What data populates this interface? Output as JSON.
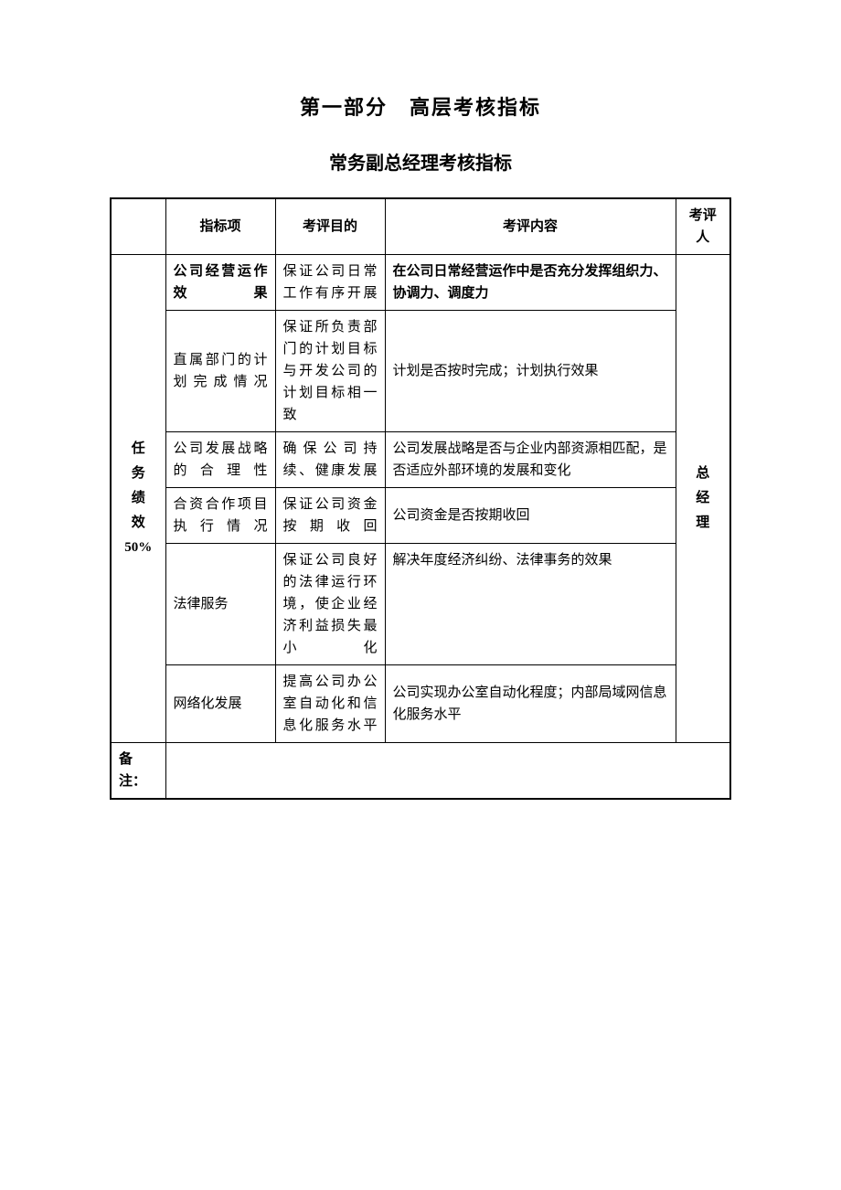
{
  "titles": {
    "main": "第一部分　高层考核指标",
    "sub": "常务副总经理考核指标"
  },
  "headers": {
    "indicator": "指标项",
    "purpose": "考评目的",
    "content": "考评内容",
    "evaluator": "考评人"
  },
  "category": {
    "line1": "任",
    "line2": "务",
    "line3": "绩",
    "line4": "效",
    "line5": "50%"
  },
  "evaluator": {
    "line1": "总",
    "line2": "经",
    "line3": "理"
  },
  "rows": [
    {
      "indicator": "公司经营运作效果",
      "indicator_bold": true,
      "purpose": "保证公司日常工作有序开展",
      "content": "在公司日常经营运作中是否充分发挥组织力、协调力、调度力",
      "content_bold": true
    },
    {
      "indicator": "直属部门的计划完成情况",
      "purpose": "保证所负责部门的计划目标与开发公司的计划目标相一致",
      "content": "计划是否按时完成；计划执行效果"
    },
    {
      "indicator": "公司发展战略的合理性",
      "purpose": "确保公司持续、健康发展",
      "content": "公司发展战略是否与企业内部资源相匹配，是否适应外部环境的发展和变化"
    },
    {
      "indicator": "合资合作项目执行情况",
      "purpose": "保证公司资金按期收回",
      "content": "公司资金是否按期收回"
    },
    {
      "indicator": "法律服务",
      "purpose": "保证公司良好的法律运行环境，使企业经济利益损失最小化",
      "content": "解决年度经济纠纷、法律事务的效果",
      "content_valign": "top"
    },
    {
      "indicator": "网络化发展",
      "purpose": "提高公司办公室自动化和信息化服务水平",
      "content": "公司实现办公室自动化程度；内部局域网信息化服务水平"
    }
  ],
  "footer": {
    "label": "备注："
  },
  "styling": {
    "background_color": "#ffffff",
    "border_color": "#000000",
    "outer_border_width": 2,
    "inner_border_width": 1,
    "title_main_fontsize": 22,
    "title_sub_fontsize": 20,
    "cell_fontsize": 15,
    "font_family": "SimSun"
  }
}
